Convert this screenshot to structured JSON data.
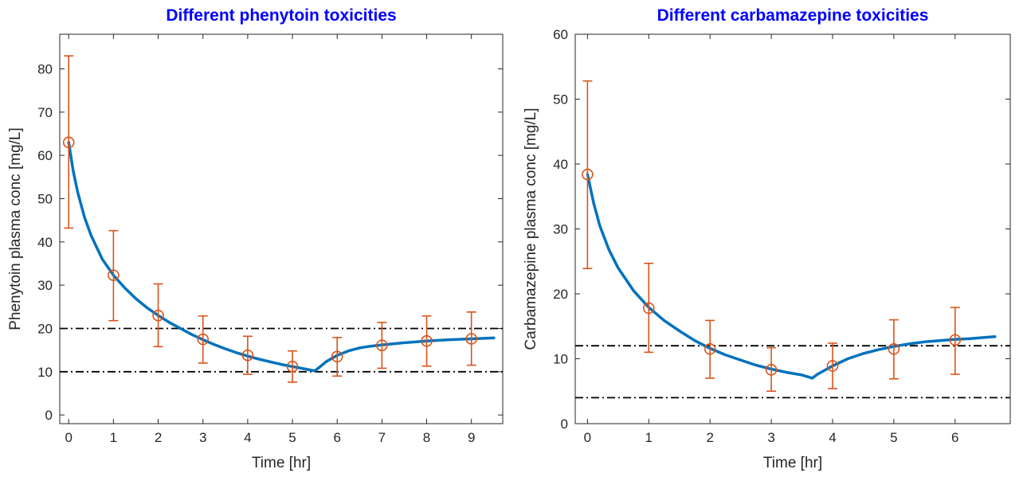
{
  "chart_data": [
    {
      "type": "line",
      "title": "Different phenytoin toxicities",
      "xlabel": "Time [hr]",
      "ylabel": "Phenytoin plasma conc [mg/L]",
      "xlim": [
        -0.2,
        9.7
      ],
      "ylim": [
        -2,
        88
      ],
      "xticks": [
        0,
        1,
        2,
        3,
        4,
        5,
        6,
        7,
        8,
        9
      ],
      "yticks": [
        0,
        10,
        20,
        30,
        40,
        50,
        60,
        70,
        80
      ],
      "colors": {
        "model": "#0072BD",
        "observed": "#D95319",
        "threshold": "#000000"
      },
      "grid": false,
      "legend": "none",
      "model_curve": {
        "x": [
          0,
          0.1,
          0.2,
          0.35,
          0.5,
          0.75,
          1.0,
          1.25,
          1.5,
          1.75,
          2.0,
          2.25,
          2.5,
          2.75,
          3.0,
          3.25,
          3.5,
          3.75,
          4.0,
          4.25,
          4.5,
          4.75,
          5.0,
          5.25,
          5.5,
          5.6,
          5.75,
          6.0,
          6.25,
          6.5,
          6.75,
          7.0,
          7.5,
          8.0,
          8.5,
          9.0,
          9.5
        ],
        "y": [
          63,
          56.5,
          51.5,
          45.8,
          41.5,
          36.0,
          32.3,
          29.4,
          26.9,
          24.8,
          23.0,
          21.4,
          20.0,
          18.6,
          17.4,
          16.3,
          15.3,
          14.4,
          13.6,
          12.9,
          12.3,
          11.7,
          11.2,
          10.7,
          10.2,
          11.0,
          12.3,
          13.8,
          14.8,
          15.5,
          15.9,
          16.2,
          16.7,
          17.1,
          17.4,
          17.6,
          17.8
        ]
      },
      "observed": {
        "x": [
          0,
          1,
          2,
          3,
          4,
          5,
          6,
          7,
          8,
          9
        ],
        "y": [
          63,
          32.3,
          23.0,
          17.5,
          13.8,
          11.2,
          13.5,
          16.1,
          17.1,
          17.6
        ],
        "err_low": [
          43.2,
          21.8,
          15.8,
          12.0,
          9.4,
          7.6,
          9.0,
          10.8,
          11.3,
          11.5
        ],
        "err_high": [
          83.0,
          42.6,
          30.3,
          22.9,
          18.2,
          14.8,
          17.9,
          21.4,
          22.9,
          23.8
        ]
      },
      "thresholds": [
        20,
        10
      ]
    },
    {
      "type": "line",
      "title": "Different carbamazepine toxicities",
      "xlabel": "Time [hr]",
      "ylabel": "Carbamazepine plasma conc [mg/L]",
      "xlim": [
        -0.2,
        6.9
      ],
      "ylim": [
        0,
        60
      ],
      "xticks": [
        0,
        1,
        2,
        3,
        4,
        5,
        6
      ],
      "yticks": [
        0,
        10,
        20,
        30,
        40,
        50,
        60
      ],
      "colors": {
        "model": "#0072BD",
        "observed": "#D95319",
        "threshold": "#000000"
      },
      "grid": false,
      "legend": "none",
      "model_curve": {
        "x": [
          0,
          0.1,
          0.2,
          0.35,
          0.5,
          0.75,
          1.0,
          1.25,
          1.5,
          1.75,
          2.0,
          2.25,
          2.5,
          2.75,
          3.0,
          3.25,
          3.5,
          3.67,
          3.75,
          4.0,
          4.25,
          4.5,
          4.75,
          5.0,
          5.25,
          5.5,
          5.75,
          6.0,
          6.25,
          6.5,
          6.65
        ],
        "y": [
          38.4,
          34.0,
          30.5,
          26.8,
          24.0,
          20.5,
          17.9,
          15.9,
          14.3,
          12.8,
          11.6,
          10.6,
          9.8,
          9.0,
          8.4,
          7.9,
          7.5,
          7.0,
          7.6,
          8.9,
          10.0,
          10.8,
          11.4,
          11.9,
          12.3,
          12.6,
          12.8,
          13.0,
          13.1,
          13.3,
          13.4
        ]
      },
      "observed": {
        "x": [
          0,
          1,
          2,
          3,
          4,
          5,
          6
        ],
        "y": [
          38.4,
          17.8,
          11.5,
          8.3,
          8.9,
          11.5,
          12.9
        ],
        "err_low": [
          23.9,
          11.0,
          7.0,
          5.0,
          5.4,
          6.9,
          7.6
        ],
        "err_high": [
          52.8,
          24.7,
          15.9,
          11.7,
          12.4,
          16.0,
          17.9
        ]
      },
      "thresholds": [
        12,
        4
      ]
    }
  ]
}
